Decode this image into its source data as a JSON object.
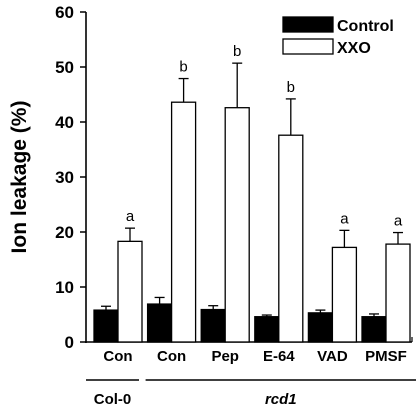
{
  "chart_data": {
    "type": "bar",
    "title": "",
    "xlabel": "",
    "ylabel": "Ion leakage (%)",
    "ylim": [
      0,
      60
    ],
    "yticks": [
      0,
      10,
      20,
      30,
      40,
      50,
      60
    ],
    "grid": false,
    "legend_position": "top-right",
    "categories": [
      "Con",
      "Con",
      "Pep",
      "E-64",
      "VAD",
      "PMSF"
    ],
    "groups": [
      {
        "label": "Col-0",
        "categories": [
          0
        ],
        "italic": false
      },
      {
        "label": "rcd1",
        "categories": [
          1,
          2,
          3,
          4,
          5
        ],
        "italic": true
      }
    ],
    "series": [
      {
        "name": "Control",
        "color": "#000000",
        "values": [
          5.8,
          6.9,
          5.9,
          4.6,
          5.3,
          4.6
        ],
        "errors": [
          0.7,
          1.2,
          0.7,
          0.3,
          0.5,
          0.5
        ],
        "labels": [
          "",
          "",
          "",
          "",
          "",
          ""
        ]
      },
      {
        "name": "XXO",
        "color": "#ffffff",
        "values": [
          18.3,
          43.6,
          42.6,
          37.6,
          17.2,
          17.8
        ],
        "errors": [
          2.4,
          4.3,
          8.1,
          6.6,
          3.1,
          2.1
        ],
        "labels": [
          "a",
          "b",
          "b",
          "b",
          "a",
          "a"
        ]
      }
    ]
  }
}
